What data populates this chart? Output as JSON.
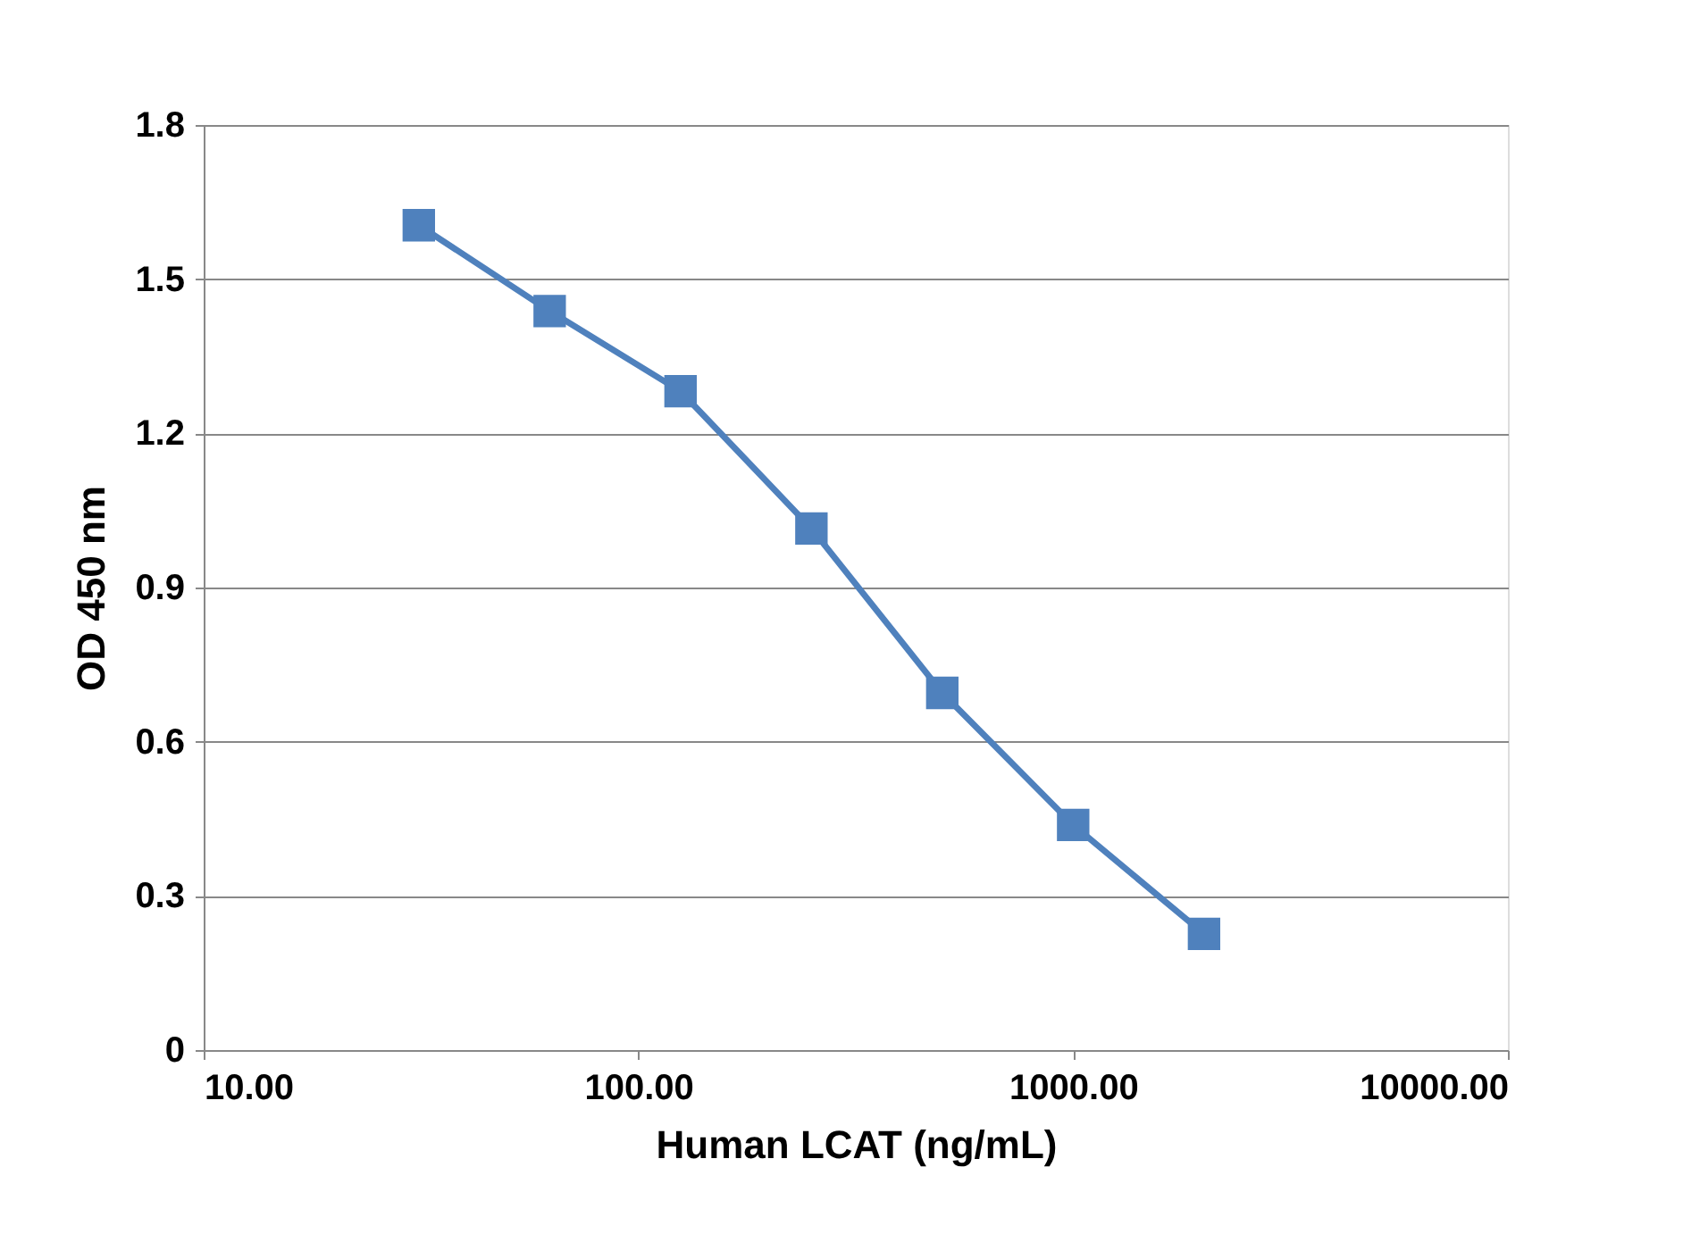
{
  "chart_data": {
    "type": "line",
    "xlabel": "Human LCAT (ng/mL)",
    "ylabel": "OD 450 nm",
    "x": [
      31.25,
      62.5,
      125,
      250,
      500,
      1000,
      2000
    ],
    "series": [
      {
        "color": "#4f81bd",
        "values": [
          1.605,
          1.438,
          1.282,
          1.015,
          0.695,
          0.438,
          0.226
        ]
      }
    ],
    "log": "x",
    "xlim": [
      10,
      10000
    ],
    "xticks": [
      {
        "value": 10,
        "label": "10.00"
      },
      {
        "value": 100,
        "label": "100.00"
      },
      {
        "value": 1000,
        "label": "1000.00"
      },
      {
        "value": 10000,
        "label": "10000.00"
      }
    ],
    "ylim": [
      0,
      1.8
    ],
    "yticks": [
      0,
      0.3,
      0.6,
      0.9,
      1.2,
      1.5,
      1.8
    ],
    "grid": "y",
    "marker": "square",
    "line_style": "solid"
  }
}
